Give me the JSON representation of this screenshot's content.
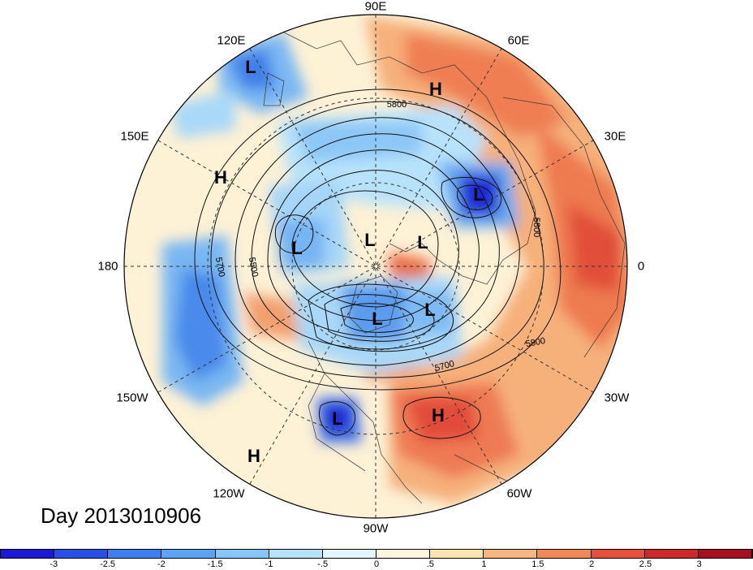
{
  "title": "Day 2013010906",
  "longitude_labels": [
    "90E",
    "60E",
    "30E",
    "0",
    "30W",
    "60W",
    "90W",
    "120W",
    "150W",
    "180",
    "150E",
    "120E"
  ],
  "centers": [
    {
      "type": "L",
      "name": "low-north-asia"
    },
    {
      "type": "H",
      "name": "high-west-asia"
    },
    {
      "type": "H",
      "name": "high-north-pacific-west"
    },
    {
      "type": "L",
      "name": "low-scandinavia"
    },
    {
      "type": "L",
      "name": "low-bering"
    },
    {
      "type": "L",
      "name": "low-arctic-center"
    },
    {
      "type": "L",
      "name": "low-greenland-sea"
    },
    {
      "type": "L",
      "name": "low-hudson-bay"
    },
    {
      "type": "L",
      "name": "low-baffin"
    },
    {
      "type": "L",
      "name": "low-mexico"
    },
    {
      "type": "H",
      "name": "high-atlantic"
    },
    {
      "type": "H",
      "name": "high-east-pacific"
    }
  ],
  "contour_labels": [
    "5800",
    "5800",
    "5700",
    "5500",
    "5700",
    "5800"
  ],
  "colorbar": {
    "ticks": [
      "-3",
      "-2.5",
      "-2",
      "-1.5",
      "-1",
      "-.5",
      "0",
      ".5",
      "1",
      "1.5",
      "2",
      "2.5",
      "3"
    ],
    "colors": [
      "#1a1ad4",
      "#2a4fe6",
      "#3e7ef0",
      "#5aa3f5",
      "#86c6f8",
      "#b6e3fb",
      "#e3f6fd",
      "#fdf6de",
      "#fbe4b0",
      "#f6b680",
      "#f18858",
      "#e5503c",
      "#cc2a2a",
      "#a50f1e"
    ]
  }
}
